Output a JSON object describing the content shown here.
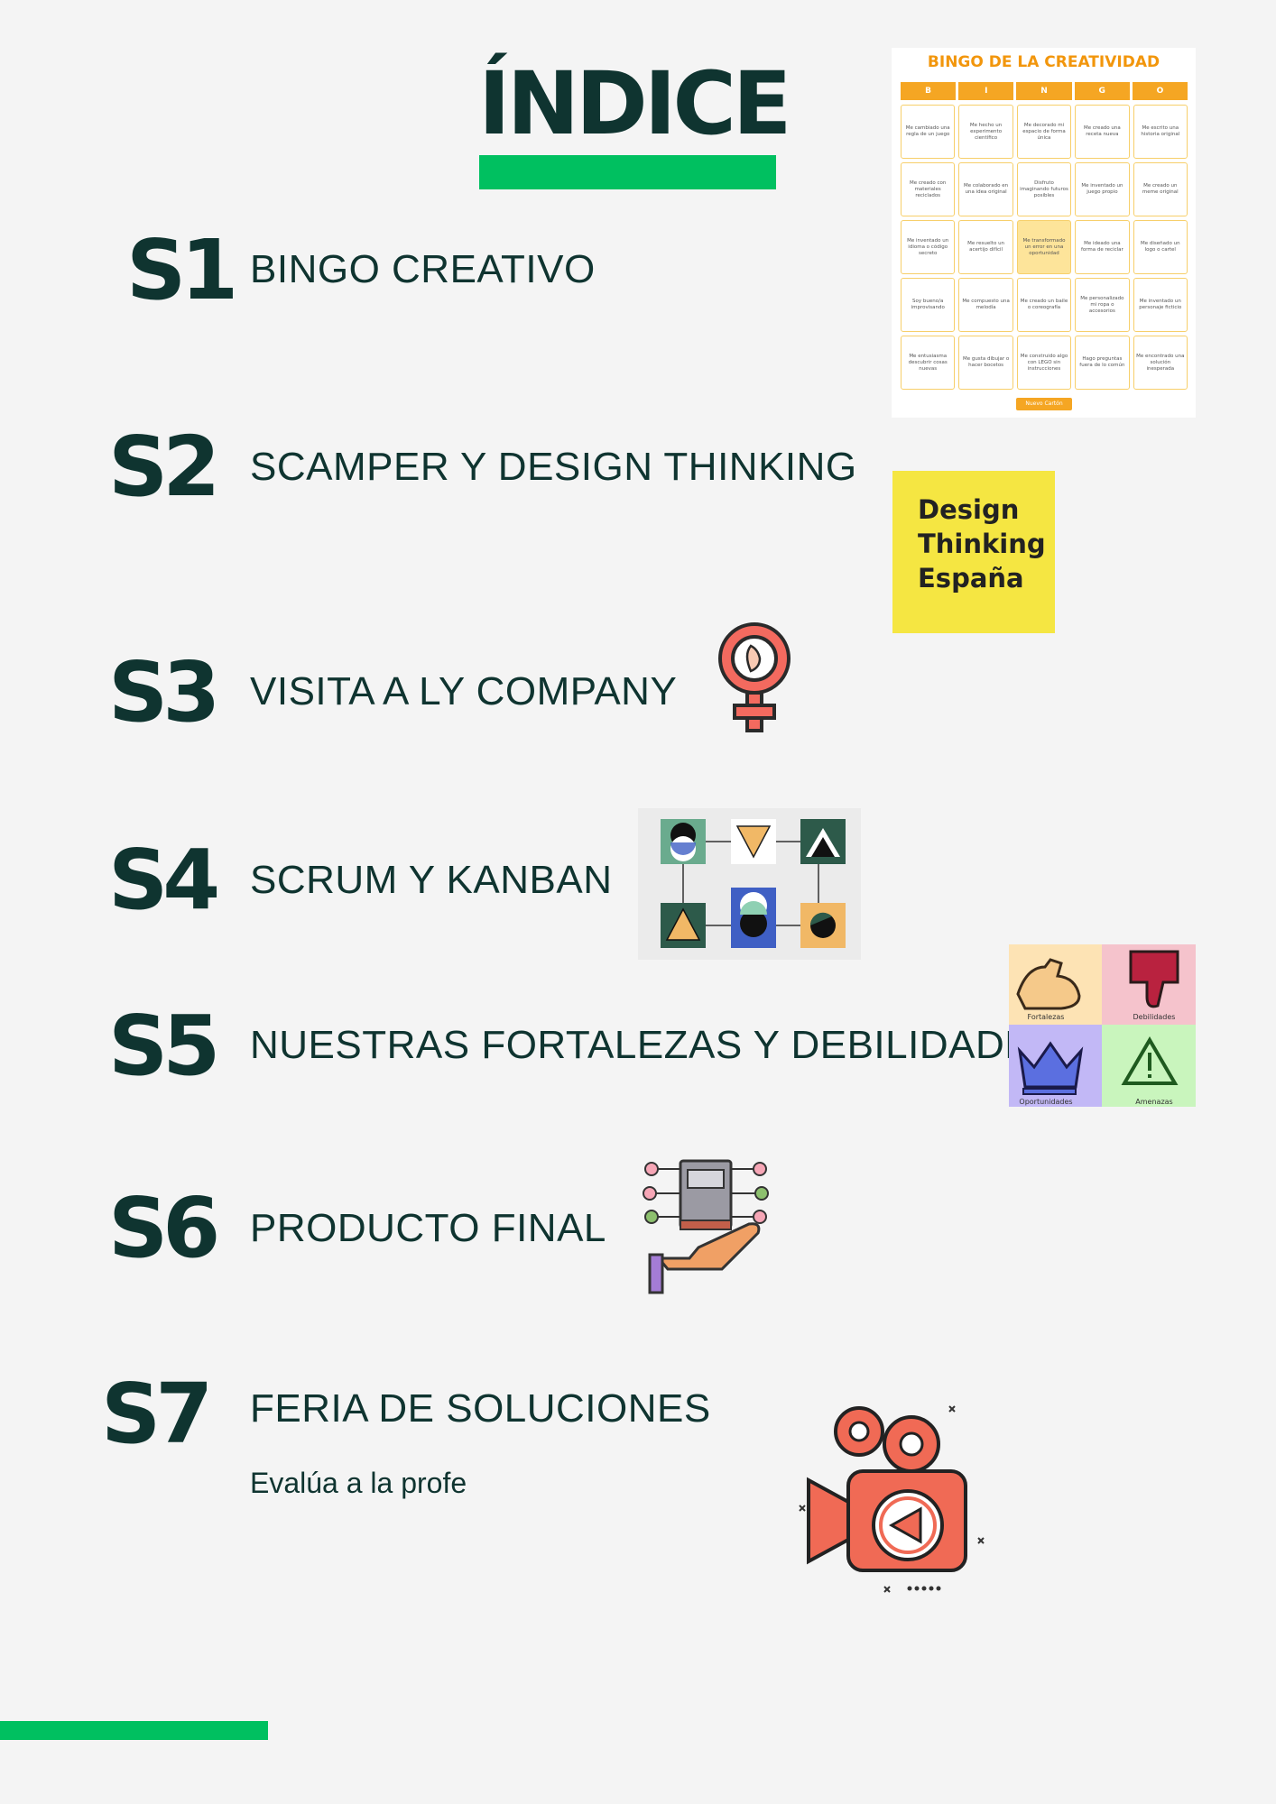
{
  "title": "ÍNDICE",
  "sections": [
    {
      "num": "S1",
      "label": "BINGO CREATIVO"
    },
    {
      "num": "S2",
      "label": "SCAMPER Y DESIGN THINKING"
    },
    {
      "num": "S3",
      "label": "VISITA A LY COMPANY"
    },
    {
      "num": "S4",
      "label": "SCRUM Y KANBAN"
    },
    {
      "num": "S5",
      "label": "NUESTRAS FORTALEZAS Y DEBILIDADES"
    },
    {
      "num": "S6",
      "label": "PRODUCTO FINAL"
    },
    {
      "num": "S7",
      "label": "FERIA DE SOLUCIONES",
      "sub": "Evalúa a la profe"
    }
  ],
  "bingo": {
    "title": "BINGO DE LA CREATIVIDAD",
    "letters": [
      "B",
      "I",
      "N",
      "G",
      "O"
    ],
    "cells": [
      "Me cambiado una regla de un juego",
      "Me hecho un experimento científico",
      "Me decorado mi espacio de forma única",
      "Me creado una receta nueva",
      "Me escrito una historia original",
      "Me creado con materiales reciclados",
      "Me colaborado en una idea original",
      "Disfruto imaginando futuros posibles",
      "Me inventado un juego propio",
      "Me creado un meme original",
      "Me inventado un idioma o código secreto",
      "Me resuelto un acertijo difícil",
      "Me transformado un error en una oportunidad",
      "Me ideado una forma de reciclar",
      "Me diseñado un logo o cartel",
      "Soy bueno/a improvisando",
      "Me compuesto una melodía",
      "Me creado un baile o coreografía",
      "Me personalizado mi ropa o accesorios",
      "Me inventado un personaje ficticio",
      "Me entusiasma descubrir cosas nuevas",
      "Me gusta dibujar o hacer bocetos",
      "Me construido algo con LEGO sin instrucciones",
      "Hago preguntas fuera de lo común",
      "Me encontrado una solución inesperada"
    ],
    "highlight_index": 12,
    "button": "Nuevo Cartón",
    "accent_color": "#f2960c"
  },
  "design_thinking": {
    "line1": "Design",
    "line2": "Thinking",
    "line3": "España"
  },
  "swot": {
    "strengths": "Fortalezas",
    "weaknesses": "Debilidades",
    "opportunities": "Oportunidades",
    "threats": "Amenazas"
  },
  "colors": {
    "dark": "#0f3430",
    "green": "#00c060",
    "background": "#f4f4f4"
  },
  "icons": [
    "female-symbol-icon",
    "scrum-kanban-diagram",
    "swot-matrix",
    "product-hand-icon",
    "video-camera-icon"
  ]
}
